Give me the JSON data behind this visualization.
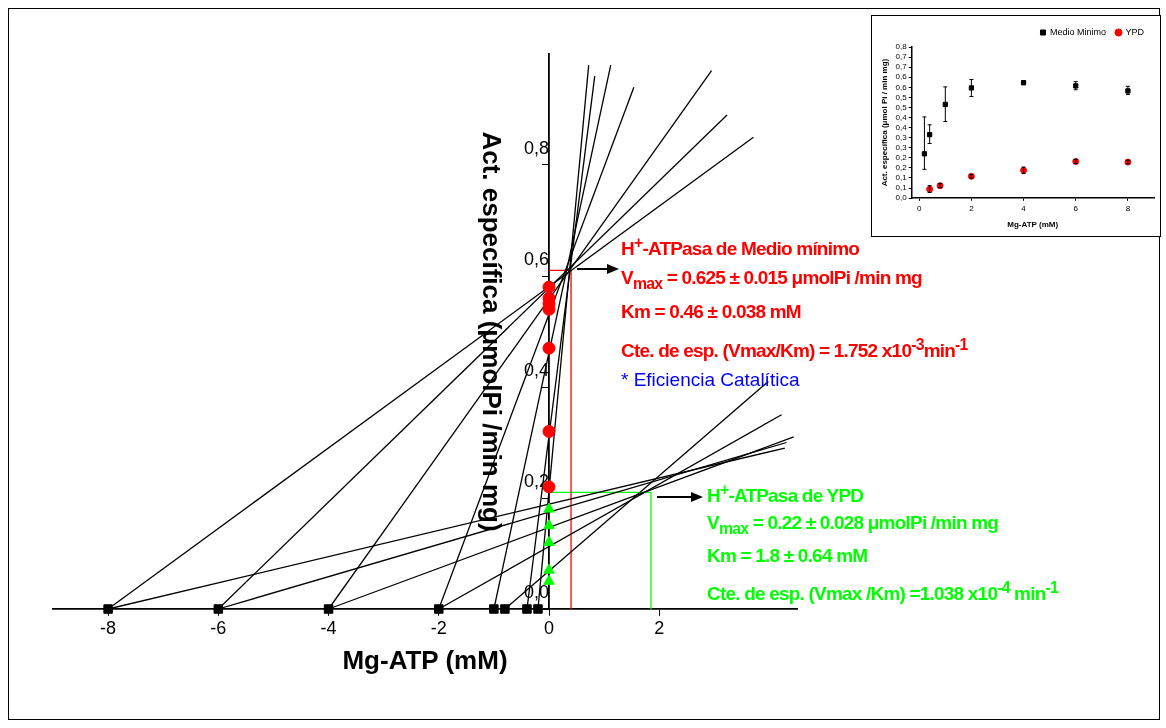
{
  "chart_data": [
    {
      "type": "line",
      "xlabel": "Mg-ATP (mM)",
      "ylabel": "Act. específica (μmolPi /min mg)",
      "xlim": [
        -9,
        4.5
      ],
      "ylim": [
        0,
        1.0
      ],
      "xticks": [
        -8,
        -6,
        -4,
        -2,
        0,
        2
      ],
      "yticks": [
        {
          "value": 0,
          "label": "0,0"
        },
        {
          "value": 0.2,
          "label": "0,2"
        },
        {
          "value": 0.4,
          "label": "0,4"
        },
        {
          "value": 0.6,
          "label": "0,6"
        },
        {
          "value": 0.8,
          "label": "0,8"
        }
      ],
      "grid": false,
      "legend": false,
      "series": [
        {
          "color": "#000000",
          "x": [
            -0.2,
            0.72
          ],
          "values": [
            0,
            0.98
          ]
        },
        {
          "color": "#000000",
          "x": [
            -0.4,
            0.83
          ],
          "values": [
            0,
            0.96
          ]
        },
        {
          "color": "#000000",
          "x": [
            -1,
            1.12
          ],
          "values": [
            0,
            0.98
          ]
        },
        {
          "color": "#000000",
          "x": [
            -2,
            1.54
          ],
          "values": [
            0,
            0.94
          ]
        },
        {
          "color": "#000000",
          "x": [
            -4,
            2.95
          ],
          "values": [
            0,
            0.97
          ]
        },
        {
          "color": "#000000",
          "x": [
            -6,
            3.23
          ],
          "values": [
            0,
            0.89
          ]
        },
        {
          "color": "#000000",
          "x": [
            -8,
            3.71
          ],
          "values": [
            0,
            0.85
          ]
        },
        {
          "color": "#000000",
          "x": [
            -0.8,
            3.98
          ],
          "values": [
            0,
            0.41
          ]
        },
        {
          "color": "#000000",
          "x": [
            -2,
            4.22
          ],
          "values": [
            0,
            0.35
          ]
        },
        {
          "color": "#000000",
          "x": [
            -4,
            4.44
          ],
          "values": [
            0,
            0.31
          ]
        },
        {
          "color": "#000000",
          "x": [
            -6,
            4.31
          ],
          "values": [
            0,
            0.3
          ]
        },
        {
          "color": "#000000",
          "x": [
            -8,
            4.28
          ],
          "values": [
            0,
            0.29
          ]
        },
        {
          "color": "#ff0000",
          "x": [
            0,
            0.4,
            0.4
          ],
          "values": [
            0.61,
            0.61,
            0
          ]
        },
        {
          "color": "#00ff00",
          "x": [
            0,
            1.85,
            1.85
          ],
          "values": [
            0.21,
            0.21,
            0
          ]
        },
        {
          "type": "scatter",
          "marker": "square",
          "color": "#000000",
          "x": [
            -8,
            -6,
            -4,
            -2,
            -1,
            -0.8,
            -0.4,
            -0.2
          ],
          "values": [
            0,
            0,
            0,
            0,
            0,
            0,
            0,
            0
          ]
        },
        {
          "type": "scatter",
          "marker": "circle",
          "color": "#ff0000",
          "x": [
            0,
            0,
            0,
            0,
            0,
            0,
            0
          ],
          "values": [
            0.58,
            0.56,
            0.55,
            0.54,
            0.47,
            0.32,
            0.22
          ]
        },
        {
          "type": "scatter",
          "marker": "triangle",
          "color": "#00ff00",
          "x": [
            0,
            0,
            0,
            0,
            0
          ],
          "values": [
            0.18,
            0.15,
            0.12,
            0.07,
            0.05
          ]
        }
      ],
      "annotations": [
        "H$^{+}$-ATPasa de Medio mínimo",
        "V$_{max}$ = 0.625 ± 0.015 μmolPi /min mg",
        "Km = 0.46 ± 0.038 mM",
        "Cte. de esp. (Vmax/Km) = 1.752 x10$^{-3}$min$^{-1}$",
        "* Eficiencia Catalítica",
        "H$^{+}$-ATPasa de YPD",
        "V$_{max}$ = 0.22 ± 0.028  μmolPi /min mg",
        "Km = 1.8 ± 0.64 mM",
        "Cte. de esp. (Vmax /Km) =1.038 x10$^{-4}$ min$^{-1}$"
      ]
    },
    {
      "type": "scatter",
      "xlabel": "Mg-ATP (mM)",
      "ylabel": "Act. específica (μmol Pi / min mg)",
      "xlim": [
        -0.3,
        9
      ],
      "ylim": [
        0,
        0.75
      ],
      "xticks": [
        0,
        2,
        4,
        6,
        8
      ],
      "yticks": [
        {
          "value": 0,
          "label": "0,0"
        },
        {
          "value": 0.05,
          "label": "0,1"
        },
        {
          "value": 0.1,
          "label": "0,1"
        },
        {
          "value": 0.15,
          "label": "0,2"
        },
        {
          "value": 0.2,
          "label": "0,2"
        },
        {
          "value": 0.25,
          "label": "0,3"
        },
        {
          "value": 0.3,
          "label": "0,3"
        },
        {
          "value": 0.35,
          "label": "0,4"
        },
        {
          "value": 0.4,
          "label": "0,4"
        },
        {
          "value": 0.45,
          "label": "0,5"
        },
        {
          "value": 0.5,
          "label": "0,5"
        },
        {
          "value": 0.55,
          "label": "0,6"
        },
        {
          "value": 0.6,
          "label": "0,6"
        },
        {
          "value": 0.65,
          "label": "0,7"
        },
        {
          "value": 0.7,
          "label": "0,7"
        },
        {
          "value": 0.75,
          "label": "0,8"
        }
      ],
      "grid": false,
      "legend": "top right",
      "series": [
        {
          "name": "Medio Minimo",
          "marker": "square",
          "color": "#000000",
          "x": [
            0.2,
            0.4,
            1,
            2,
            4,
            6,
            8
          ],
          "values": [
            0.22,
            0.315,
            0.465,
            0.547,
            0.573,
            0.557,
            0.532
          ],
          "errors": [
            [
              0.143,
              0.403
            ],
            [
              0.271,
              0.364
            ],
            [
              0.38,
              0.552
            ],
            [
              0.504,
              0.589
            ],
            [
              0.563,
              0.583
            ],
            [
              0.538,
              0.578
            ],
            [
              0.514,
              0.555
            ]
          ]
        },
        {
          "name": "YPD",
          "marker": "circle",
          "color": "#ff0000",
          "x": [
            0.4,
            0.8,
            2,
            4,
            6,
            8
          ],
          "values": [
            0.044,
            0.062,
            0.108,
            0.138,
            0.182,
            0.179
          ],
          "errors": [
            [
              0.028,
              0.062
            ],
            [
              0.052,
              0.072
            ],
            [
              0.1,
              0.116
            ],
            [
              0.122,
              0.154
            ],
            [
              0.172,
              0.192
            ],
            [
              0.17,
              0.188
            ]
          ]
        }
      ]
    }
  ]
}
